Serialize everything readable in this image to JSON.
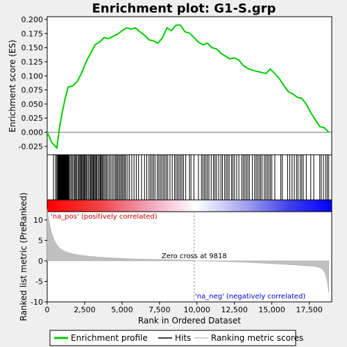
{
  "chart_data": {
    "type": "line",
    "title": "Enrichment plot: G1-S.grp",
    "x_label": "Rank in Ordered Dataset",
    "y_label_top": "Enrichment score (ES)",
    "y_label_bottom": "Ranked list metric (PreRanked)",
    "xlim": [
      0,
      19000
    ],
    "es_ylim": [
      -0.04,
      0.205
    ],
    "metric_ylim": [
      -10,
      12
    ],
    "x_ticks": [
      "0",
      "2,500",
      "5,000",
      "7,500",
      "10,000",
      "12,500",
      "15,000",
      "17,500"
    ],
    "x_tick_values": [
      0,
      2500,
      5000,
      7500,
      10000,
      12500,
      15000,
      17500
    ],
    "es_ticks": [
      "0.200",
      "0.175",
      "0.150",
      "0.125",
      "0.100",
      "0.075",
      "0.050",
      "0.025",
      "0.000",
      "-0.025"
    ],
    "es_tick_values": [
      0.2,
      0.175,
      0.15,
      0.125,
      0.1,
      0.075,
      0.05,
      0.025,
      0.0,
      -0.025
    ],
    "metric_ticks": [
      "10",
      "5",
      "0",
      "-5",
      "-10"
    ],
    "metric_tick_values": [
      10,
      5,
      0,
      -5,
      -10
    ],
    "zero_cross_label": "Zero cross at 9818",
    "zero_cross": 9818,
    "pos_label": "'na_pos' (positively correlated)",
    "neg_label": "'na_neg' (negatively correlated)",
    "enrichment_profile": {
      "name": "Enrichment profile",
      "color": "#00cc00",
      "x": [
        0,
        300,
        650,
        800,
        1000,
        1200,
        1400,
        1700,
        2000,
        2300,
        2600,
        2900,
        3200,
        3500,
        3800,
        4100,
        4400,
        4700,
        5000,
        5300,
        5600,
        5900,
        6200,
        6500,
        6800,
        7100,
        7400,
        7700,
        8000,
        8300,
        8600,
        8900,
        9200,
        9500,
        9800,
        10100,
        10400,
        10700,
        11000,
        11300,
        11600,
        11900,
        12200,
        12500,
        12800,
        13100,
        13400,
        13700,
        14000,
        14300,
        14600,
        14900,
        15200,
        15500,
        15800,
        16100,
        16400,
        16700,
        17000,
        17300,
        17600,
        17900,
        18200,
        18500,
        18800
      ],
      "y": [
        0.0,
        -0.018,
        -0.028,
        0.005,
        0.035,
        0.06,
        0.08,
        0.082,
        0.09,
        0.105,
        0.125,
        0.14,
        0.155,
        0.16,
        0.168,
        0.166,
        0.17,
        0.174,
        0.18,
        0.185,
        0.183,
        0.185,
        0.178,
        0.172,
        0.164,
        0.162,
        0.158,
        0.168,
        0.185,
        0.18,
        0.19,
        0.19,
        0.178,
        0.176,
        0.168,
        0.16,
        0.155,
        0.158,
        0.15,
        0.148,
        0.14,
        0.135,
        0.13,
        0.132,
        0.128,
        0.118,
        0.113,
        0.11,
        0.108,
        0.106,
        0.104,
        0.112,
        0.104,
        0.095,
        0.083,
        0.072,
        0.068,
        0.062,
        0.06,
        0.05,
        0.035,
        0.022,
        0.01,
        0.008,
        0.0
      ]
    },
    "hits_legend": "Hits",
    "metric_legend": "Ranking metric scores",
    "hits": [
      420,
      560,
      640,
      700,
      730,
      760,
      790,
      820,
      850,
      880,
      910,
      940,
      970,
      1000,
      1030,
      1060,
      1090,
      1120,
      1150,
      1180,
      1210,
      1240,
      1270,
      1300,
      1330,
      1360,
      1390,
      1420,
      1450,
      1520,
      1600,
      1680,
      1760,
      1840,
      1900,
      1960,
      2050,
      2120,
      2180,
      2240,
      2300,
      2360,
      2420,
      2480,
      2540,
      2600,
      2660,
      2750,
      2830,
      2900,
      2960,
      3020,
      3080,
      3140,
      3200,
      3260,
      3320,
      3400,
      3480,
      3540,
      3600,
      3660,
      3720,
      3800,
      3880,
      3960,
      4050,
      4150,
      4250,
      4350,
      4450,
      4550,
      4620,
      4700,
      4780,
      4860,
      4940,
      5020,
      5100,
      5180,
      5260,
      5380,
      5500,
      5650,
      5800,
      5950,
      6100,
      6300,
      6500,
      6650,
      6800,
      6900,
      7000,
      7100,
      7200,
      7350,
      7450,
      7550,
      7650,
      7750,
      7850,
      7950,
      8050,
      8200,
      8350,
      8500,
      8600,
      8700,
      8800,
      8900,
      9000,
      9100,
      9250,
      9500,
      9600,
      9800,
      10100,
      10300,
      10400,
      10500,
      10600,
      10700,
      10800,
      10950,
      11100,
      11200,
      11300,
      11450,
      11600,
      11700,
      11850,
      11950,
      12050,
      12150,
      12300,
      12400,
      12500,
      12650,
      12800,
      13000,
      13100,
      13200,
      13300,
      13400,
      13500,
      13700,
      13850,
      13950,
      14050,
      14150,
      14250,
      14350,
      14500,
      14600,
      14700,
      14800,
      14900,
      15000,
      15200,
      15600,
      15700,
      16050,
      16200,
      16350,
      16500,
      16650,
      16750,
      16900,
      17000,
      17100,
      17300,
      17600,
      17800,
      18200,
      18300,
      18450,
      18600,
      18700,
      18800
    ]
  }
}
